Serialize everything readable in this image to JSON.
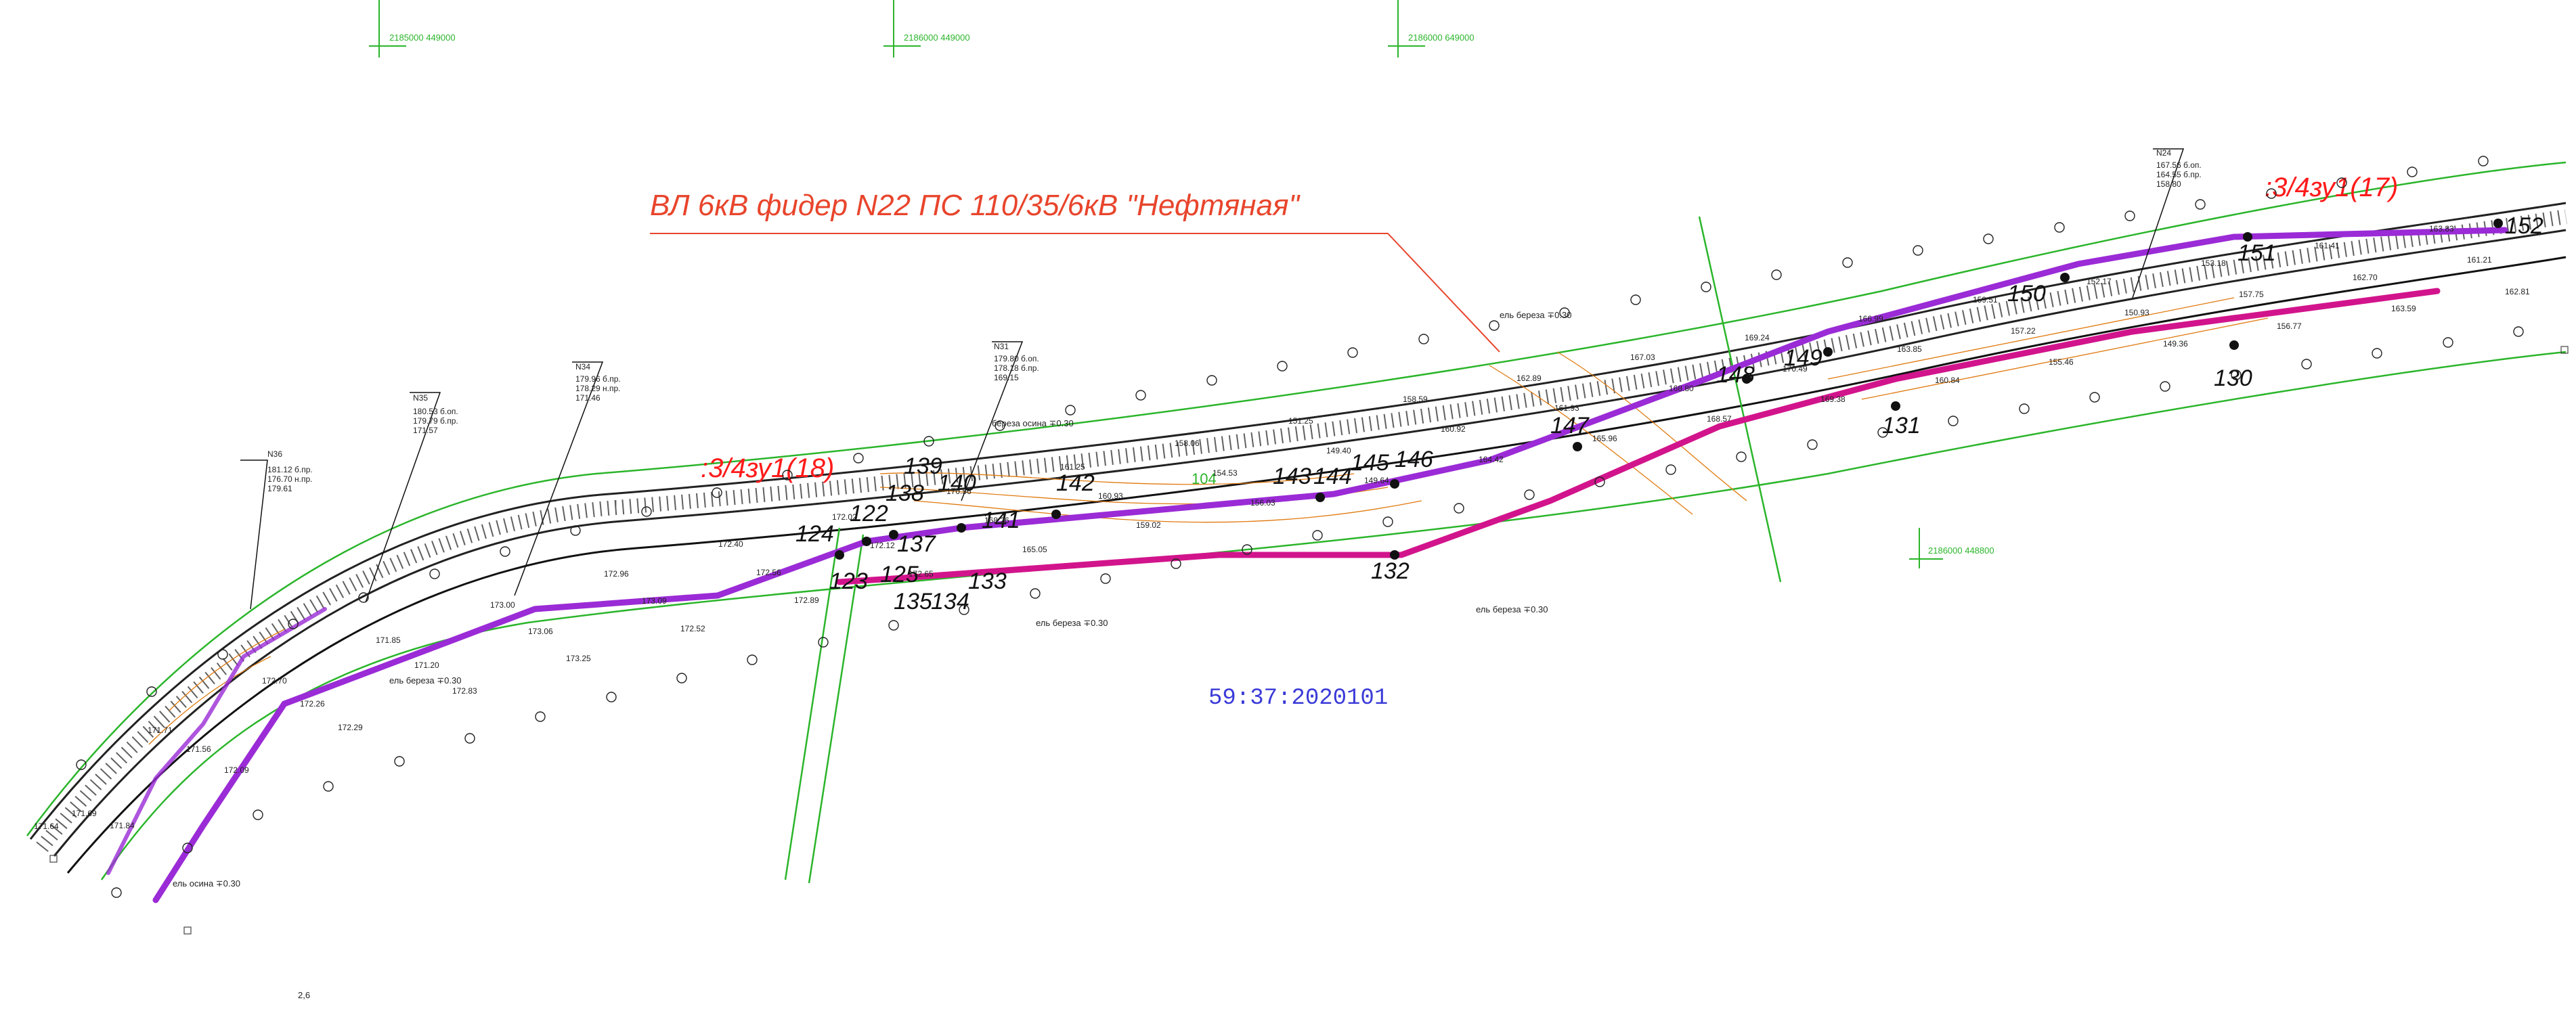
{
  "title": "ВЛ 6кВ фидер N22 ПС 110/35/6кВ \"Нефтяная\"",
  "cadastral": "59:37:2020101",
  "grid_labels": [
    "2185000 449000",
    "2186000 449000",
    "2186000 649000",
    "2186000 448800"
  ],
  "red_labels": [
    ":3/4зу1(18)",
    ":3/4зу1(17)"
  ],
  "green_label": "104",
  "pole_numbers": [
    "124",
    "122",
    "123",
    "125",
    "138",
    "139",
    "140",
    "137",
    "135",
    "134",
    "133",
    "141",
    "142",
    "143",
    "144",
    "145",
    "146",
    "147",
    "148",
    "149",
    "150",
    "151",
    "152",
    "132",
    "131",
    "130"
  ],
  "pillar_notes": [
    {
      "head": "N36",
      "lines": [
        "181.12 б.пр.",
        "176.70 н.пр.",
        "179.61"
      ]
    },
    {
      "head": "N35",
      "lines": [
        "180.53 б.оп.",
        "179.79 б.пр.",
        "171.57"
      ]
    },
    {
      "head": "N34",
      "lines": [
        "179.96 б.пр.",
        "178.29 н.пр.",
        "171.46"
      ]
    },
    {
      "head": "N31",
      "lines": [
        "179.80 б.оп.",
        "178.18 б.пр.",
        "169.15"
      ]
    },
    {
      "head": "N24",
      "lines": [
        "167.56 б.оп.",
        "164.55 б.пр.",
        "158.80"
      ]
    }
  ],
  "elevations": [
    "171.64",
    "171.69",
    "171.84",
    "171.71",
    "171.56",
    "172.09",
    "172.70",
    "172.26",
    "172.29",
    "171.85",
    "171.20",
    "172.83",
    "173.00",
    "173.06",
    "173.25",
    "172.96",
    "173.09",
    "172.52",
    "172.40",
    "172.56",
    "172.89",
    "172.02",
    "172.12",
    "172.65",
    "170.56",
    "168.26",
    "165.05",
    "161.25",
    "160.93",
    "159.02",
    "158.06",
    "154.53",
    "156.03",
    "151.25",
    "149.40",
    "149.64",
    "158.59",
    "160.92",
    "164.42",
    "162.89",
    "161.93",
    "165.96",
    "167.03",
    "168.80",
    "168.57",
    "169.24",
    "170.49",
    "169.38",
    "166.99",
    "163.85",
    "160.84",
    "159.51",
    "157.22",
    "155.46",
    "152.17",
    "150.93",
    "149.36",
    "153.18",
    "157.75",
    "156.77",
    "161.41",
    "162.70",
    "163.59",
    "163.83",
    "161.21",
    "162.81"
  ],
  "tree_notes": [
    "ель береза ∓0.30",
    "береза осина ∓0.30",
    "ель береза ∓0.30",
    "ель береза ∓0.30",
    "ель береза ∓0.30",
    "ель осина ∓0.30"
  ],
  "bottom_note": "2,6"
}
